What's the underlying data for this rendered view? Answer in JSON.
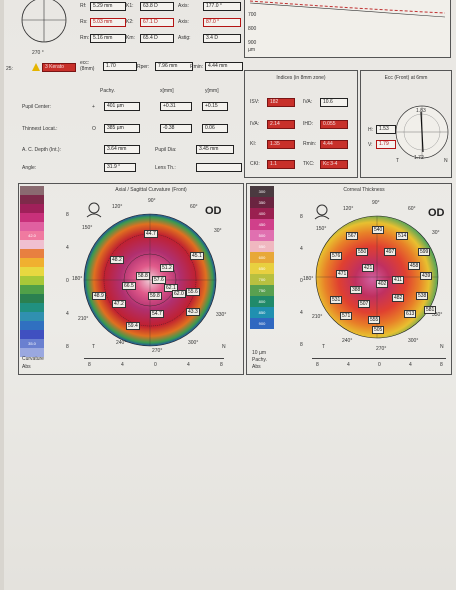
{
  "header": {
    "rows": [
      {
        "k1": "Rf:",
        "v1": "5.29 mm",
        "k2": "K1:",
        "v2": "63.8 D",
        "k3": "Axis:",
        "v3": "177.0 °",
        "red": false
      },
      {
        "k1": "Rs:",
        "v1": "5.03 mm",
        "k2": "K2:",
        "v2": "67.1 D",
        "k3": "Axis:",
        "v3": "87.0 °",
        "red": true
      },
      {
        "k1": "Rm:",
        "v1": "5.16 mm",
        "k2": "Km:",
        "v2": "65.4 D",
        "k3": "Astig:",
        "v3": "3.4 D",
        "red": false
      }
    ],
    "quality_angle": "270 °",
    "quality_left": "25:",
    "quality_status": "3 Kerato",
    "ecc_label": "ecc:",
    "ecc_sub": "(8mm)",
    "ecc_value": "1.70",
    "rper_label": "Rper:",
    "rper_value": "7.96 mm",
    "rmin_label": "Rmin:",
    "rmin_value": "4.44 mm",
    "elev_ticks": [
      "700",
      "800",
      "900"
    ],
    "elev_unit": "µm"
  },
  "pachy": {
    "col1": "Pachy.",
    "col2": "x[mm]",
    "col3": "y[mm]",
    "rows": [
      {
        "label": "Pupil Center:",
        "sym": "+",
        "v1": "401 µm",
        "v2": "+0.31",
        "v3": "+0.15"
      },
      {
        "label": "Thinnest Locat.:",
        "sym": "O",
        "v1": "385 µm",
        "v2": "-0.38",
        "v3": "0.06"
      }
    ],
    "acd_label": "A. C. Depth (Int.):",
    "acd_value": "3.64 mm",
    "pupil_label": "Pupil Dia:",
    "pupil_value": "3.45 mm",
    "angle_label": "Angle:",
    "angle_value": "31.9 °",
    "lens_label": "Lens Th.:"
  },
  "indices": {
    "title": "Indices (in 8mm zone)",
    "items": [
      {
        "k": "ISV:",
        "v": "182",
        "fill": true
      },
      {
        "k": "IVA:",
        "v": "10.6",
        "fill": false
      },
      {
        "k": "IVA:",
        "v": "2.14",
        "fill": true
      },
      {
        "k": "IHD:",
        "v": "0.055",
        "fill": true
      },
      {
        "k": "KI:",
        "v": "1.35",
        "fill": true
      },
      {
        "k": "Rmin:",
        "v": "4.44",
        "fill": true
      },
      {
        "k": "CKI:",
        "v": "1.1",
        "fill": true
      },
      {
        "k": "TKC:",
        "v": "Kc 3-4",
        "fill": true
      }
    ]
  },
  "ecc": {
    "title": "Ecc (Front) at 6mm",
    "h_label": "H:",
    "h_value": "1.53",
    "v_label": "V:",
    "v_value": "1.79",
    "top": "1.83",
    "bottom": "1.72",
    "t": "T",
    "n": "N"
  },
  "curvature": {
    "title": "Axial / Sagittal Curvature (Front)",
    "od": "OD",
    "deg_top": "90°",
    "deg_bottom": "270°",
    "deg_120": "120°",
    "deg_60": "60°",
    "deg_150": "150°",
    "deg_30": "30°",
    "deg_180": "180°",
    "deg_210": "210°",
    "deg_330": "330°",
    "deg_240": "240°",
    "deg_300": "300°",
    "t": "T",
    "n": "N",
    "scale_footer1": "Curvature",
    "scale_footer2": "Abs",
    "ruler": [
      "8",
      "4",
      "0",
      "4",
      "8"
    ],
    "side_ticks": [
      "8",
      "4",
      "0",
      "4",
      "8"
    ],
    "scale": [
      "",
      "",
      "",
      "",
      "",
      "42.0",
      "",
      "",
      "",
      "",
      "",
      "",
      "",
      "",
      "",
      "",
      "",
      "35.0",
      ""
    ],
    "values": [
      {
        "t": "44.7"
      },
      {
        "t": "48.2"
      },
      {
        "t": "45.1"
      },
      {
        "t": "51.2"
      },
      {
        "t": "58.8"
      },
      {
        "t": "57.6"
      },
      {
        "t": "66.5"
      },
      {
        "t": "62.1"
      },
      {
        "t": "55.6"
      },
      {
        "t": "62.0"
      },
      {
        "t": "48.9"
      },
      {
        "t": "59.8"
      },
      {
        "t": "43.3"
      },
      {
        "t": "54.7"
      },
      {
        "t": "59.4"
      },
      {
        "t": "47.2"
      }
    ]
  },
  "thickness": {
    "title": "Corneal Thickness",
    "od": "OD",
    "deg_top": "90°",
    "deg_bottom": "270°",
    "deg_120": "120°",
    "deg_60": "60°",
    "deg_150": "150°",
    "deg_30": "30°",
    "deg_180": "180°",
    "deg_210": "210°",
    "deg_330": "330°",
    "deg_240": "240°",
    "deg_300": "300°",
    "t": "T",
    "n": "N",
    "scale_footer1": "10 µm",
    "scale_footer2": "Pachy.",
    "scale_footer3": "Abs",
    "ruler": [
      "8",
      "4",
      "0",
      "4",
      "8"
    ],
    "side_ticks": [
      "8",
      "4",
      "0",
      "4",
      "8"
    ],
    "scale": [
      "300",
      "350",
      "400",
      "450",
      "500",
      "550",
      "600",
      "650",
      "700",
      "750",
      "800",
      "850",
      "900"
    ],
    "values": [
      {
        "t": "567"
      },
      {
        "t": "540"
      },
      {
        "t": "514"
      },
      {
        "t": "599"
      },
      {
        "t": "576"
      },
      {
        "t": "550"
      },
      {
        "t": "497"
      },
      {
        "t": "458"
      },
      {
        "t": "471"
      },
      {
        "t": "421"
      },
      {
        "t": "402"
      },
      {
        "t": "388"
      },
      {
        "t": "411"
      },
      {
        "t": "439"
      },
      {
        "t": "531"
      },
      {
        "t": "507"
      },
      {
        "t": "482"
      },
      {
        "t": "538"
      },
      {
        "t": "571"
      },
      {
        "t": "555"
      },
      {
        "t": "613"
      },
      {
        "t": "505"
      },
      {
        "t": "581"
      }
    ]
  }
}
